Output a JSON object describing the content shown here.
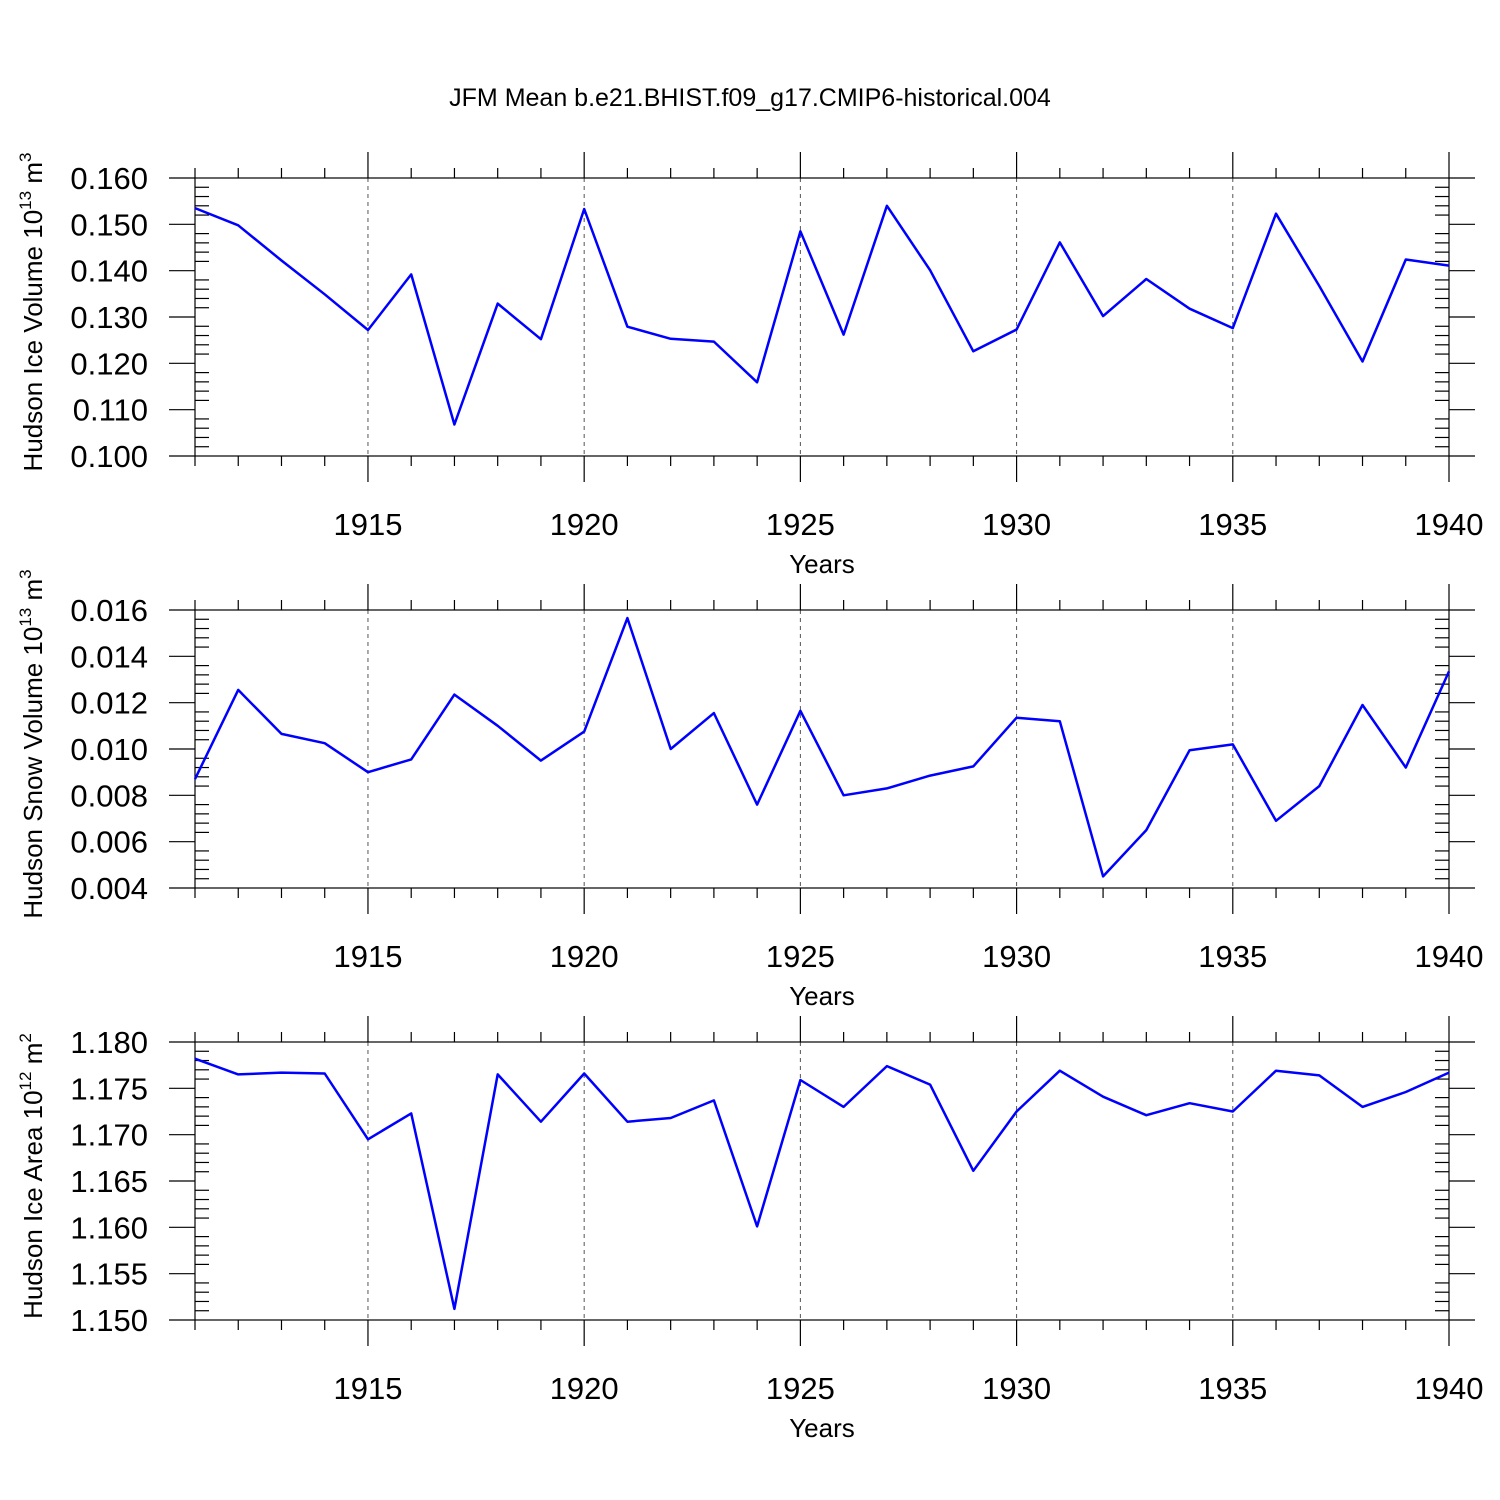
{
  "figure": {
    "title": "JFM Mean b.e21.BHIST.f09_g17.CMIP6-historical.004"
  },
  "chart_data": [
    {
      "type": "line",
      "ylabel_main": "Hudson Ice Volume 10",
      "ylabel_exp": "13",
      "ylabel_unit": " m",
      "ylabel_unit_exp": "3",
      "xlabel": "Years",
      "xlim": [
        1911,
        1940
      ],
      "ylim": [
        0.1,
        0.16
      ],
      "xticks": [
        1915,
        1920,
        1925,
        1930,
        1935,
        1940
      ],
      "yticks": [
        0.1,
        0.11,
        0.12,
        0.13,
        0.14,
        0.15,
        0.16
      ],
      "ytick_labels": [
        "0.100",
        "0.110",
        "0.120",
        "0.130",
        "0.140",
        "0.150",
        "0.160"
      ],
      "x": [
        1911,
        1912,
        1913,
        1914,
        1915,
        1916,
        1917,
        1918,
        1919,
        1920,
        1921,
        1922,
        1923,
        1924,
        1925,
        1926,
        1927,
        1928,
        1929,
        1930,
        1931,
        1932,
        1933,
        1934,
        1935,
        1936,
        1937,
        1938,
        1939,
        1940
      ],
      "values": [
        0.1535,
        0.1498,
        0.1422,
        0.1349,
        0.1272,
        0.1392,
        0.1068,
        0.1329,
        0.1252,
        0.1533,
        0.1279,
        0.1253,
        0.1247,
        0.1159,
        0.1485,
        0.1262,
        0.154,
        0.1401,
        0.1226,
        0.1273,
        0.1461,
        0.1302,
        0.1382,
        0.1318,
        0.1276,
        0.1523,
        0.1367,
        0.1204,
        0.1424,
        0.1411
      ],
      "color": "#0000ff"
    },
    {
      "type": "line",
      "ylabel_main": "Hudson Snow Volume 10",
      "ylabel_exp": "13",
      "ylabel_unit": " m",
      "ylabel_unit_exp": "3",
      "xlabel": "Years",
      "xlim": [
        1911,
        1940
      ],
      "ylim": [
        0.004,
        0.016
      ],
      "xticks": [
        1915,
        1920,
        1925,
        1930,
        1935,
        1940
      ],
      "yticks": [
        0.004,
        0.006,
        0.008,
        0.01,
        0.012,
        0.014,
        0.016
      ],
      "ytick_labels": [
        "0.004",
        "0.006",
        "0.008",
        "0.010",
        "0.012",
        "0.014",
        "0.016"
      ],
      "x": [
        1911,
        1912,
        1913,
        1914,
        1915,
        1916,
        1917,
        1918,
        1919,
        1920,
        1921,
        1922,
        1923,
        1924,
        1925,
        1926,
        1927,
        1928,
        1929,
        1930,
        1931,
        1932,
        1933,
        1934,
        1935,
        1936,
        1937,
        1938,
        1939,
        1940
      ],
      "values": [
        0.0087,
        0.01255,
        0.01065,
        0.01025,
        0.009,
        0.00955,
        0.01235,
        0.011,
        0.0095,
        0.01075,
        0.01565,
        0.01,
        0.01155,
        0.0076,
        0.01165,
        0.008,
        0.0083,
        0.00885,
        0.00925,
        0.01135,
        0.0112,
        0.0045,
        0.0065,
        0.00995,
        0.0102,
        0.0069,
        0.0084,
        0.0119,
        0.0092,
        0.01335
      ],
      "color": "#0000ff"
    },
    {
      "type": "line",
      "ylabel_main": "Hudson Ice Area 10",
      "ylabel_exp": "12",
      "ylabel_unit": " m",
      "ylabel_unit_exp": "2",
      "xlabel": "Years",
      "xlim": [
        1911,
        1940
      ],
      "ylim": [
        1.15,
        1.18
      ],
      "xticks": [
        1915,
        1920,
        1925,
        1930,
        1935,
        1940
      ],
      "yticks": [
        1.15,
        1.155,
        1.16,
        1.165,
        1.17,
        1.175,
        1.18
      ],
      "ytick_labels": [
        "1.150",
        "1.155",
        "1.160",
        "1.165",
        "1.170",
        "1.175",
        "1.180"
      ],
      "x": [
        1911,
        1912,
        1913,
        1914,
        1915,
        1916,
        1917,
        1918,
        1919,
        1920,
        1921,
        1922,
        1923,
        1924,
        1925,
        1926,
        1927,
        1928,
        1929,
        1930,
        1931,
        1932,
        1933,
        1934,
        1935,
        1936,
        1937,
        1938,
        1939,
        1940
      ],
      "values": [
        1.1782,
        1.1765,
        1.1767,
        1.1766,
        1.1695,
        1.1723,
        1.1512,
        1.1765,
        1.1714,
        1.1766,
        1.1714,
        1.1718,
        1.1737,
        1.1601,
        1.1759,
        1.173,
        1.1774,
        1.1754,
        1.1661,
        1.1725,
        1.1769,
        1.1741,
        1.1721,
        1.1734,
        1.1725,
        1.1769,
        1.1764,
        1.173,
        1.1746,
        1.1767
      ],
      "color": "#0000ff"
    }
  ]
}
